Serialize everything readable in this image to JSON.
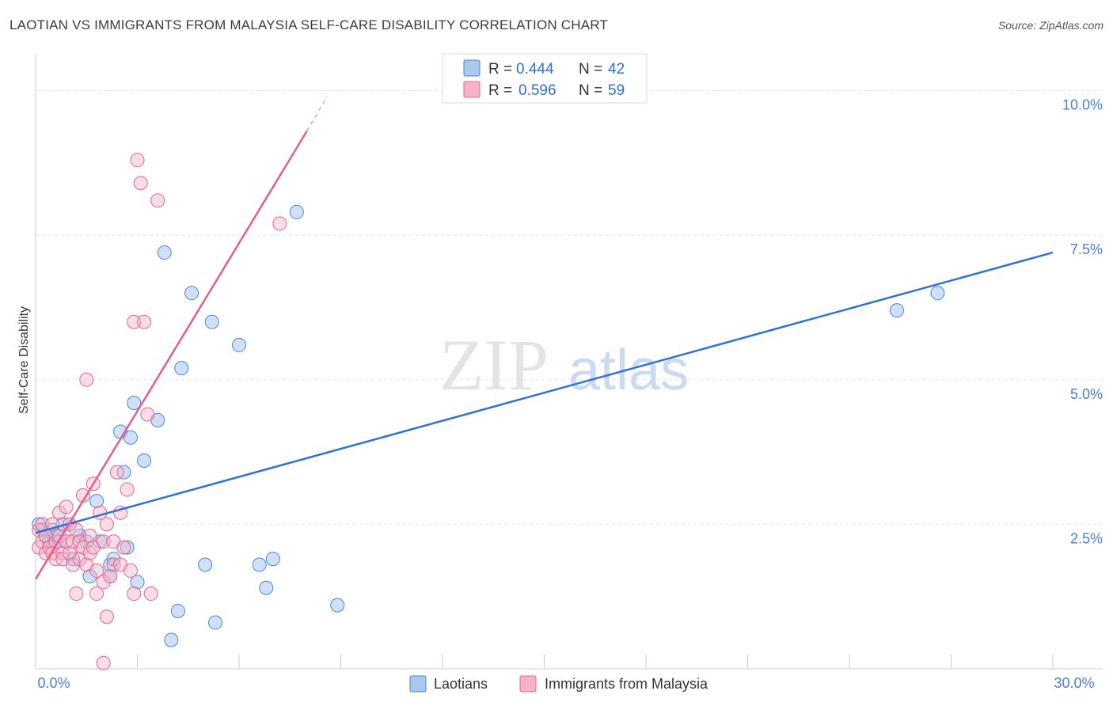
{
  "header": {
    "title": "LAOTIAN VS IMMIGRANTS FROM MALAYSIA SELF-CARE DISABILITY CORRELATION CHART",
    "source": "Source: ZipAtlas.com"
  },
  "watermark": {
    "zip": "ZIP",
    "atlas": "atlas"
  },
  "colors": {
    "blue": "#4a86d8",
    "blue_fill": "#a9c8f0",
    "pink": "#e8638f",
    "pink_fill": "#f5b3c8",
    "axis_text": "#4a7fd4",
    "grid": "#dddddd"
  },
  "chart_data": {
    "type": "scatter",
    "title": "LAOTIAN VS IMMIGRANTS FROM MALAYSIA SELF-CARE DISABILITY CORRELATION CHART",
    "xlabel": "",
    "ylabel": "Self-Care Disability",
    "xlim": [
      0,
      30
    ],
    "ylim": [
      0,
      10.5
    ],
    "x_tick_labels": [
      "0.0%",
      "30.0%"
    ],
    "y_ticks": [
      {
        "value": 2.5,
        "label": "2.5%"
      },
      {
        "value": 5.0,
        "label": "5.0%"
      },
      {
        "value": 7.5,
        "label": "7.5%"
      },
      {
        "value": 10.0,
        "label": "10.0%"
      }
    ],
    "legend": {
      "rows": [
        {
          "r_label": "R =",
          "r_value": "0.444",
          "n_label": "N =",
          "n_value": "42"
        },
        {
          "r_label": "R =",
          "r_value": "0.596",
          "n_label": "N =",
          "n_value": "59"
        }
      ]
    },
    "series": [
      {
        "name": "Laotians",
        "color": "#4a86d8",
        "trend": {
          "x0": 0,
          "y0": 2.35,
          "x1": 30,
          "y1": 7.2
        },
        "points": [
          [
            0.1,
            2.5
          ],
          [
            0.2,
            2.4
          ],
          [
            0.3,
            2.3
          ],
          [
            0.4,
            2.2
          ],
          [
            0.5,
            2.4
          ],
          [
            0.6,
            2.3
          ],
          [
            0.7,
            2.2
          ],
          [
            0.8,
            2.5
          ],
          [
            1.0,
            2.5
          ],
          [
            1.1,
            1.9
          ],
          [
            1.3,
            2.3
          ],
          [
            1.5,
            2.2
          ],
          [
            1.6,
            1.6
          ],
          [
            1.8,
            2.9
          ],
          [
            1.9,
            2.2
          ],
          [
            2.2,
            1.8
          ],
          [
            2.2,
            1.6
          ],
          [
            2.3,
            1.9
          ],
          [
            2.5,
            4.1
          ],
          [
            2.6,
            3.4
          ],
          [
            2.7,
            2.1
          ],
          [
            2.8,
            4.0
          ],
          [
            2.9,
            4.6
          ],
          [
            3.0,
            1.5
          ],
          [
            3.2,
            3.6
          ],
          [
            3.6,
            4.3
          ],
          [
            3.8,
            7.2
          ],
          [
            4.0,
            0.5
          ],
          [
            4.2,
            1.0
          ],
          [
            4.3,
            5.2
          ],
          [
            4.6,
            6.5
          ],
          [
            5.0,
            1.8
          ],
          [
            5.2,
            6.0
          ],
          [
            5.3,
            0.8
          ],
          [
            6.0,
            5.6
          ],
          [
            6.6,
            1.8
          ],
          [
            6.8,
            1.4
          ],
          [
            7.0,
            1.9
          ],
          [
            7.7,
            7.9
          ],
          [
            8.9,
            1.1
          ],
          [
            25.4,
            6.2
          ],
          [
            26.6,
            6.5
          ]
        ]
      },
      {
        "name": "Immigrants from Malaysia",
        "color": "#e8638f",
        "trend": {
          "x0": 0,
          "y0": 1.55,
          "x1": 8.0,
          "y1": 9.3,
          "dash_x1": 8.6,
          "dash_y1": 9.9
        },
        "points": [
          [
            0.1,
            2.4
          ],
          [
            0.1,
            2.1
          ],
          [
            0.2,
            2.5
          ],
          [
            0.2,
            2.2
          ],
          [
            0.3,
            2.0
          ],
          [
            0.3,
            2.3
          ],
          [
            0.4,
            2.1
          ],
          [
            0.5,
            2.0
          ],
          [
            0.5,
            2.5
          ],
          [
            0.6,
            2.2
          ],
          [
            0.6,
            1.9
          ],
          [
            0.7,
            2.7
          ],
          [
            0.7,
            2.3
          ],
          [
            0.8,
            2.0
          ],
          [
            0.8,
            1.9
          ],
          [
            0.9,
            2.2
          ],
          [
            0.9,
            2.8
          ],
          [
            1.0,
            2.5
          ],
          [
            1.0,
            2.0
          ],
          [
            1.1,
            2.2
          ],
          [
            1.1,
            1.8
          ],
          [
            1.2,
            2.4
          ],
          [
            1.2,
            1.3
          ],
          [
            1.3,
            2.2
          ],
          [
            1.3,
            1.9
          ],
          [
            1.4,
            3.0
          ],
          [
            1.4,
            2.1
          ],
          [
            1.5,
            5.0
          ],
          [
            1.5,
            1.8
          ],
          [
            1.6,
            2.3
          ],
          [
            1.6,
            2.0
          ],
          [
            1.7,
            2.1
          ],
          [
            1.7,
            3.2
          ],
          [
            1.8,
            1.3
          ],
          [
            1.8,
            1.7
          ],
          [
            1.9,
            2.7
          ],
          [
            2.0,
            2.2
          ],
          [
            2.0,
            1.5
          ],
          [
            2.1,
            2.5
          ],
          [
            2.1,
            0.9
          ],
          [
            2.2,
            1.6
          ],
          [
            2.3,
            2.2
          ],
          [
            2.3,
            1.8
          ],
          [
            2.4,
            3.4
          ],
          [
            2.5,
            2.7
          ],
          [
            2.5,
            1.8
          ],
          [
            2.6,
            2.1
          ],
          [
            2.7,
            3.1
          ],
          [
            2.8,
            1.7
          ],
          [
            2.9,
            6.0
          ],
          [
            2.9,
            1.3
          ],
          [
            3.0,
            8.8
          ],
          [
            3.1,
            8.4
          ],
          [
            3.2,
            6.0
          ],
          [
            3.3,
            4.4
          ],
          [
            3.4,
            1.3
          ],
          [
            3.6,
            8.1
          ],
          [
            7.2,
            7.7
          ],
          [
            2.0,
            0.1
          ]
        ]
      }
    ]
  },
  "bottom_legend": [
    {
      "label": "Laotians"
    },
    {
      "label": "Immigrants from Malaysia"
    }
  ]
}
